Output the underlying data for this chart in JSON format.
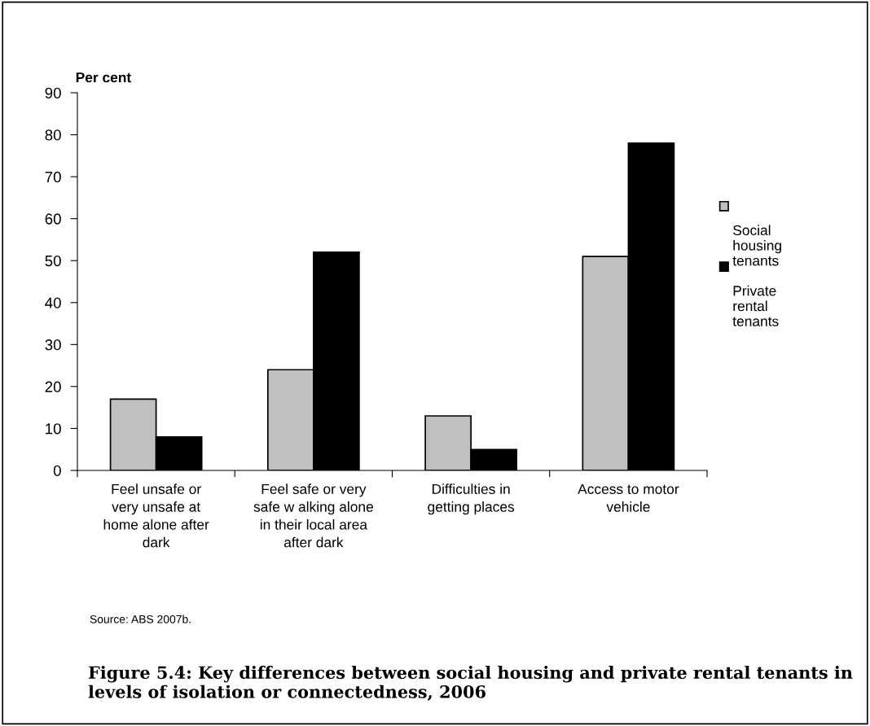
{
  "chart_data": {
    "type": "bar",
    "title": "Figure 5.4: Key differences between social housing and private rental tenants in levels of isolation or connectedness, 2006",
    "ylabel": "Per cent",
    "categories": [
      "Feel unsafe or\nvery unsafe at\nhome alone after\ndark",
      "Feel safe or very\nsafe w alking alone\nin their local area\nafter dark",
      "Difficulties in\ngetting places",
      "Access to motor\nvehicle"
    ],
    "series": [
      {
        "name": "Social\nhousing\ntenants",
        "color": "#c0c0c0",
        "values": [
          17,
          24,
          13,
          51
        ]
      },
      {
        "name": "Private\nrental\ntenants",
        "color": "#000000",
        "values": [
          8,
          52,
          5,
          78
        ]
      }
    ],
    "ylim": [
      0,
      90
    ],
    "yticks": [
      0,
      10,
      20,
      30,
      40,
      50,
      60,
      70,
      80,
      90
    ],
    "grid": false,
    "legend": "right",
    "annotations": [
      "Source: ABS 2007b."
    ]
  }
}
